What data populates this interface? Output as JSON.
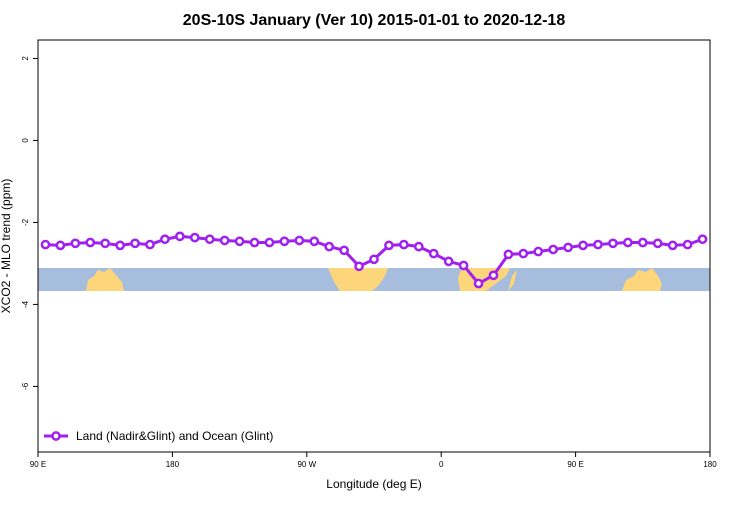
{
  "chart_data": {
    "type": "line",
    "title": "20S-10S January (Ver 10)   2015-01-01 to 2020-12-18",
    "x_label": "Longitude (deg E)",
    "y_label": "XCO2 - MLO trend (ppm)",
    "x": [
      95,
      105,
      115,
      125,
      135,
      145,
      155,
      165,
      175,
      185,
      195,
      205,
      215,
      225,
      235,
      245,
      255,
      265,
      275,
      285,
      295,
      305,
      315,
      325,
      335,
      345,
      355,
      365,
      375,
      385,
      395,
      405,
      415,
      425,
      435,
      445,
      455,
      465,
      475,
      485,
      495,
      505,
      515,
      525,
      535
    ],
    "series": [
      {
        "name": "Land (Nadir&Glint) and Ocean (Glint)",
        "color": "#a020f0",
        "values": [
          -2.54,
          -2.56,
          -2.51,
          -2.49,
          -2.51,
          -2.56,
          -2.51,
          -2.54,
          -2.41,
          -2.34,
          -2.37,
          -2.41,
          -2.44,
          -2.46,
          -2.49,
          -2.49,
          -2.46,
          -2.44,
          -2.46,
          -2.59,
          -2.68,
          -3.07,
          -2.9,
          -2.56,
          -2.54,
          -2.59,
          -2.76,
          -2.95,
          -3.05,
          -3.49,
          -3.29,
          -2.78,
          -2.76,
          -2.71,
          -2.66,
          -2.61,
          -2.56,
          -2.54,
          -2.51,
          -2.49,
          -2.49,
          -2.51,
          -2.56,
          -2.54,
          -2.41
        ]
      }
    ],
    "xlim": [
      90,
      540
    ],
    "xticks": [
      {
        "value": 90,
        "label": "90 E"
      },
      {
        "value": 180,
        "label": "180"
      },
      {
        "value": 270,
        "label": "90 W"
      },
      {
        "value": 360,
        "label": "0"
      },
      {
        "value": 450,
        "label": "90 E"
      },
      {
        "value": 540,
        "label": "180"
      }
    ],
    "ylim": [
      -7.6,
      2.45
    ],
    "yticks": [
      -6,
      -4,
      -2,
      0,
      2
    ],
    "grid": false,
    "legend": "bottom-left"
  }
}
